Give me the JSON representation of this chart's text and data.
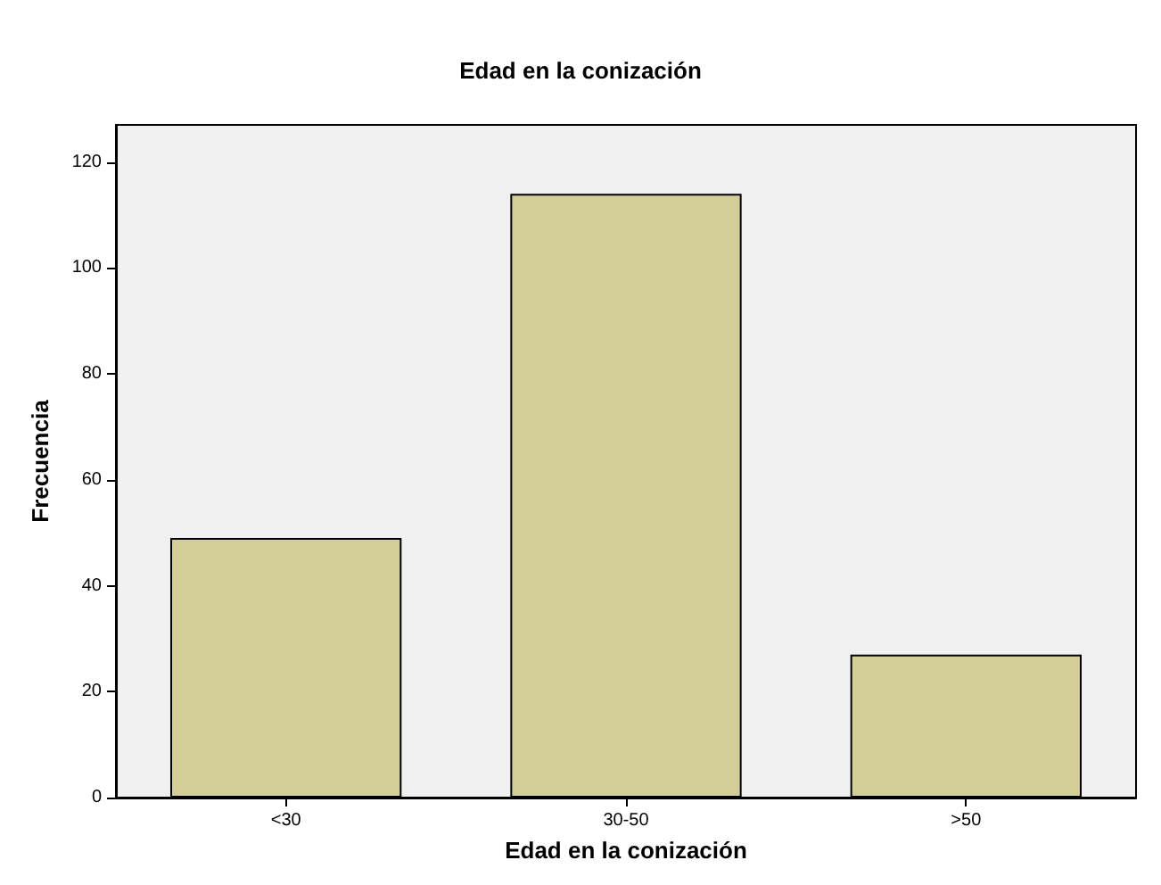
{
  "chart_data": {
    "type": "bar",
    "title": "Edad en la conización",
    "xlabel": "Edad en la conización",
    "ylabel": "Frecuencia",
    "categories": [
      "<30",
      "30-50",
      ">50"
    ],
    "values": [
      49,
      114,
      27
    ],
    "color": "#d3ce97",
    "ylim": [
      0,
      127
    ],
    "yticks": [
      0,
      20,
      40,
      60,
      80,
      100,
      120
    ],
    "grid": false
  }
}
